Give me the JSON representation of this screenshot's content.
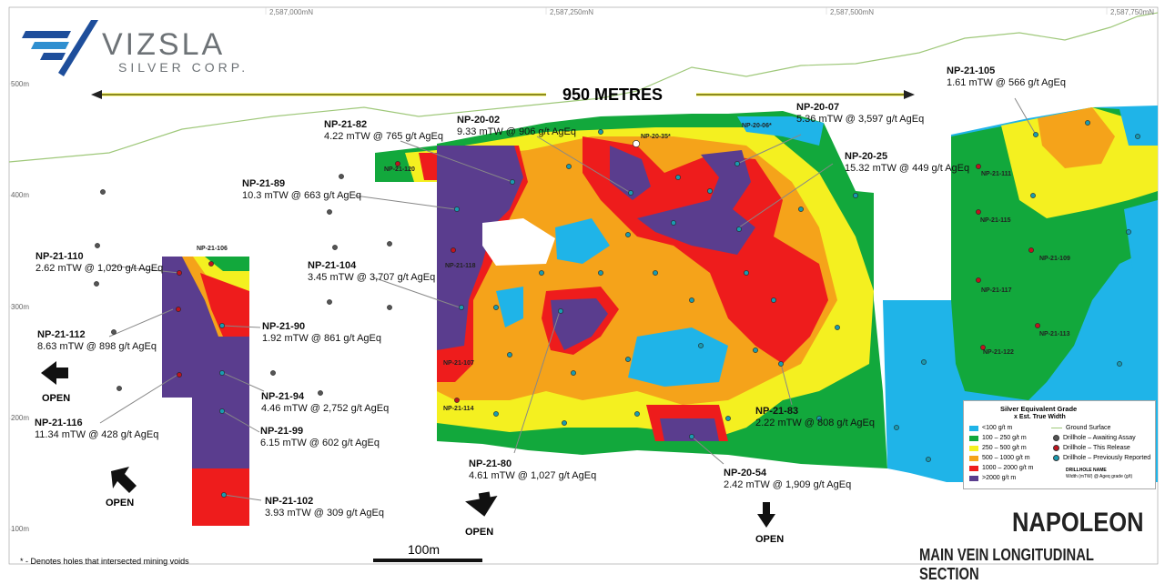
{
  "logo": {
    "name": "VIZSLA",
    "sub": "SILVER CORP."
  },
  "northings": [
    "2,587,000mN",
    "2,587,250mN",
    "2,587,500mN",
    "2,587,750mN"
  ],
  "elevations": [
    "500m",
    "400m",
    "300m",
    "200m",
    "100m"
  ],
  "width_label": "950 METRES",
  "intercepts": [
    {
      "id": "NP-21-105",
      "text": "1.61 mTW @ 566 g/t AgEq"
    },
    {
      "id": "NP-20-07",
      "text": "5.36 mTW @ 3,597 g/t AgEq"
    },
    {
      "id": "NP-21-82",
      "text": "4.22 mTW @ 765 g/t AgEq"
    },
    {
      "id": "NP-20-02",
      "text": "9.33 mTW @ 906 g/t AgEq"
    },
    {
      "id": "NP-20-25",
      "text": "15.32 mTW @ 449 g/t AgEq"
    },
    {
      "id": "NP-21-89",
      "text": "10.3 mTW @ 663 g/t AgEq"
    },
    {
      "id": "NP-21-110",
      "text": "2.62 mTW @ 1,020 g/t AgEq"
    },
    {
      "id": "NP-21-104",
      "text": "3.45 mTW @ 3,707 g/t AgEq"
    },
    {
      "id": "NP-21-90",
      "text": "1.92 mTW @ 861 g/t AgEq"
    },
    {
      "id": "NP-21-112",
      "text": "8.63 mTW @ 898 g/t AgEq"
    },
    {
      "id": "NP-21-94",
      "text": "4.46 mTW @ 2,752 g/t AgEq"
    },
    {
      "id": "NP-21-116",
      "text": "11.34 mTW @ 428 g/t AgEq"
    },
    {
      "id": "NP-21-99",
      "text": "6.15 mTW @ 602 g/t AgEq"
    },
    {
      "id": "NP-21-83",
      "text": "2.22 mTW @ 808 g/t AgEq"
    },
    {
      "id": "NP-21-80",
      "text": "4.61 mTW @ 1,027 g/t AgEq"
    },
    {
      "id": "NP-20-54",
      "text": "2.42 mTW @ 1,909 g/t AgEq"
    },
    {
      "id": "NP-21-102",
      "text": "3.93 mTW @ 309 g/t AgEq"
    }
  ],
  "hole_tags": [
    "NP-21-120",
    "NP-21-106",
    "NP-21-118",
    "NP-21-107",
    "NP-21-114",
    "NP-20-35*",
    "NP-20-06*",
    "NP-21-111",
    "NP-21-115",
    "NP-21-109",
    "NP-21-117",
    "NP-21-113",
    "NP-21-122"
  ],
  "open_label": "OPEN",
  "legend": {
    "title1": "Silver Equivalent Grade",
    "title2": "x Est. True Width",
    "grades": [
      {
        "label": "<100 g/t m",
        "color": "#1fb4e8"
      },
      {
        "label": "100 – 250 g/t m",
        "color": "#12a83c"
      },
      {
        "label": "250 – 500 g/t m",
        "color": "#f4f020"
      },
      {
        "label": "500 – 1000 g/t m",
        "color": "#f5a31a"
      },
      {
        "label": "1000 – 2000 g/t m",
        "color": "#ee1c1c"
      },
      {
        "label": ">2000 g/t m",
        "color": "#5a3d8e"
      }
    ],
    "ground": "Ground Surface",
    "drill": [
      {
        "label": "Drillhole – Awaiting Assay",
        "color": "#555555"
      },
      {
        "label": "Drillhole – This Release",
        "color": "#c0141e"
      },
      {
        "label": "Drillhole – Previously Reported",
        "color": "#1a9bb0"
      }
    ],
    "note1": "DRILLHOLE NAME",
    "note2": "Width (mTW) @ Ageq grade (g/t)"
  },
  "scale_label": "100m",
  "title_main": "NAPOLEON",
  "title_sub": "MAIN VEIN LONGITUDINAL SECTION",
  "footnote": "* - Denotes holes that intersected mining voids"
}
